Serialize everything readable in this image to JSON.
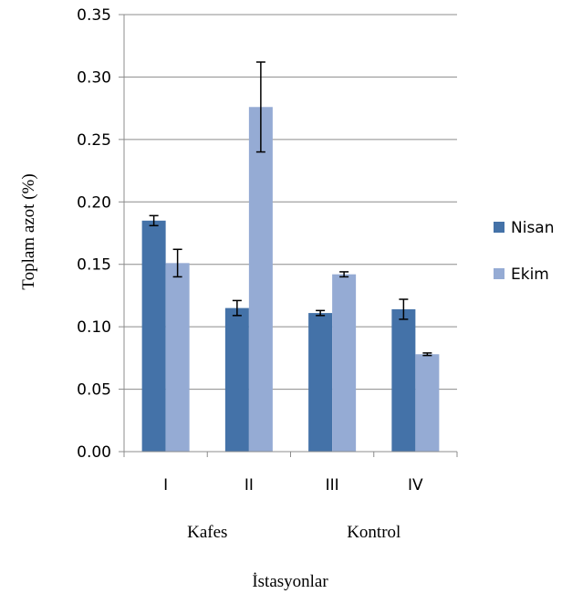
{
  "chart_data": {
    "type": "bar",
    "categories": [
      "I",
      "II",
      "III",
      "IV"
    ],
    "groups": [
      {
        "label": "Kafes",
        "categories": [
          "I",
          "II"
        ]
      },
      {
        "label": "Kontrol",
        "categories": [
          "III",
          "IV"
        ]
      }
    ],
    "series": [
      {
        "name": "Nisan",
        "color": "#4472a8",
        "values": [
          0.185,
          0.115,
          0.111,
          0.114
        ],
        "errors": [
          0.004,
          0.006,
          0.002,
          0.008
        ]
      },
      {
        "name": "Ekim",
        "color": "#95abd4",
        "values": [
          0.151,
          0.276,
          0.142,
          0.078
        ],
        "errors": [
          0.011,
          0.036,
          0.002,
          0.001
        ]
      }
    ],
    "ylabel": "Toplam azot (%)",
    "xlabel": "İstasyonlar",
    "ylim": [
      0,
      0.35
    ],
    "yticks": [
      "0.00",
      "0.05",
      "0.10",
      "0.15",
      "0.20",
      "0.25",
      "0.30",
      "0.35"
    ],
    "grid": true,
    "legend_position": "right"
  }
}
